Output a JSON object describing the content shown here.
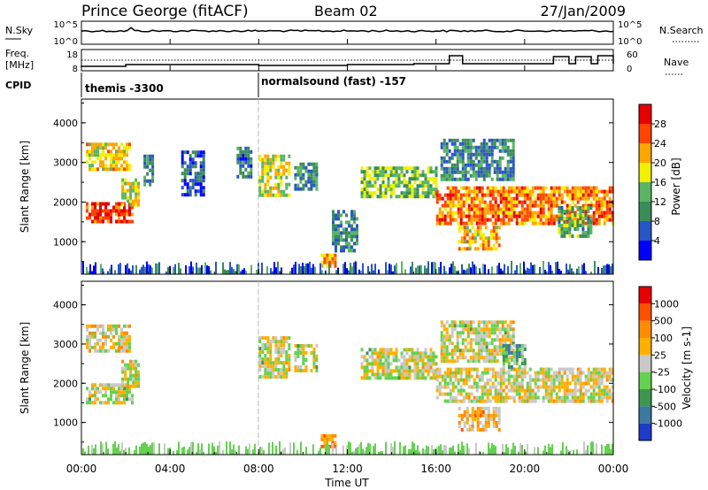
{
  "header": {
    "station": "Prince George (fitACF)",
    "beam": "Beam 02",
    "date": "27/Jan/2009"
  },
  "noise_panel": {
    "left_label": "N.Sky",
    "right_label": "N.Search",
    "left_ticks": [
      "10^5",
      "10^0"
    ],
    "right_ticks": [
      "10^5",
      "10^0"
    ]
  },
  "freq_panel": {
    "left_label_1": "Freq.",
    "left_label_2": "[MHz]",
    "right_label": "Nave",
    "left_ticks": [
      "18",
      "8"
    ],
    "right_ticks": [
      "60",
      "0"
    ]
  },
  "cpid": {
    "label": "CPID",
    "segments": [
      {
        "text": "themis -3300",
        "start_hour": 0
      },
      {
        "text": "normalsound (fast) -157",
        "start_hour": 8
      }
    ]
  },
  "x_axis": {
    "label": "Time UT",
    "ticks": [
      "00:00",
      "04:00",
      "08:00",
      "12:00",
      "16:00",
      "20:00",
      "00:00"
    ],
    "range_hours": [
      0,
      24
    ]
  },
  "chart_data": [
    {
      "type": "heatmap",
      "name": "Power",
      "ylabel": "Slant Range [km]",
      "ylim": [
        180,
        4600
      ],
      "yticks": [
        "1000",
        "2000",
        "3000",
        "4000"
      ],
      "colorbar_label": "Power [dB]",
      "colorbar_ticks": [
        "4",
        "8",
        "12",
        "16",
        "20",
        "24",
        "28"
      ],
      "colorscale": [
        "#0000ff",
        "#2855c8",
        "#3c8c5a",
        "#5ab464",
        "#f0f000",
        "#ffa500",
        "#ff4500",
        "#e60000"
      ],
      "regions": [
        {
          "t0": 0.2,
          "t1": 2.3,
          "r0": 1500,
          "r1": 2000,
          "level": 0.85
        },
        {
          "t0": 1.8,
          "t1": 2.6,
          "r0": 1900,
          "r1": 2600,
          "level": 0.55
        },
        {
          "t0": 0.2,
          "t1": 2.2,
          "r0": 2800,
          "r1": 3500,
          "level": 0.6
        },
        {
          "t0": 2.8,
          "t1": 3.2,
          "r0": 2400,
          "r1": 3200,
          "level": 0.3
        },
        {
          "t0": 4.5,
          "t1": 5.5,
          "r0": 2200,
          "r1": 3300,
          "level": 0.2
        },
        {
          "t0": 7.0,
          "t1": 7.6,
          "r0": 2600,
          "r1": 3400,
          "level": 0.25
        },
        {
          "t0": 8.0,
          "t1": 9.4,
          "r0": 2200,
          "r1": 3200,
          "level": 0.55
        },
        {
          "t0": 9.6,
          "t1": 10.6,
          "r0": 2300,
          "r1": 3000,
          "level": 0.3
        },
        {
          "t0": 10.8,
          "t1": 11.4,
          "r0": 350,
          "r1": 700,
          "level": 0.7
        },
        {
          "t0": 11.3,
          "t1": 12.4,
          "r0": 800,
          "r1": 1800,
          "level": 0.3
        },
        {
          "t0": 12.6,
          "t1": 16.0,
          "r0": 2100,
          "r1": 2900,
          "level": 0.45
        },
        {
          "t0": 16.0,
          "t1": 24.0,
          "r0": 1500,
          "r1": 2400,
          "level": 0.75
        },
        {
          "t0": 16.2,
          "t1": 19.5,
          "r0": 2600,
          "r1": 3600,
          "level": 0.3
        },
        {
          "t0": 17.0,
          "t1": 18.8,
          "r0": 800,
          "r1": 1400,
          "level": 0.65
        },
        {
          "t0": 21.5,
          "t1": 23.0,
          "r0": 1100,
          "r1": 1900,
          "level": 0.4
        }
      ]
    },
    {
      "type": "heatmap",
      "name": "Velocity",
      "ylabel": "Slant Range [km]",
      "ylim": [
        180,
        4600
      ],
      "yticks": [
        "1000",
        "2000",
        "3000",
        "4000"
      ],
      "colorbar_label": "Velocity [m s-1]",
      "colorbar_ticks": [
        "1000",
        "500",
        "100",
        "25",
        "-25",
        "-100",
        "-500",
        "-1000"
      ],
      "colorscale": [
        "#1e3cc8",
        "#3c78a0",
        "#3c9650",
        "#64d250",
        "#c8c8c8",
        "#ffb000",
        "#ff8c00",
        "#ff5000",
        "#e60000"
      ],
      "regions": [
        {
          "t0": 0.2,
          "t1": 2.3,
          "r0": 1500,
          "r1": 2000,
          "level": 0.5
        },
        {
          "t0": 1.8,
          "t1": 2.6,
          "r0": 1900,
          "r1": 2600,
          "level": 0.5
        },
        {
          "t0": 0.2,
          "t1": 2.2,
          "r0": 2800,
          "r1": 3500,
          "level": 0.55
        },
        {
          "t0": 8.0,
          "t1": 9.4,
          "r0": 2200,
          "r1": 3200,
          "level": 0.5
        },
        {
          "t0": 9.6,
          "t1": 10.6,
          "r0": 2300,
          "r1": 3000,
          "level": 0.5
        },
        {
          "t0": 10.8,
          "t1": 11.4,
          "r0": 350,
          "r1": 700,
          "level": 0.72
        },
        {
          "t0": 12.6,
          "t1": 16.0,
          "r0": 2100,
          "r1": 2900,
          "level": 0.5
        },
        {
          "t0": 16.0,
          "t1": 24.0,
          "r0": 1500,
          "r1": 2400,
          "level": 0.52
        },
        {
          "t0": 16.2,
          "t1": 19.5,
          "r0": 2600,
          "r1": 3600,
          "level": 0.5
        },
        {
          "t0": 17.0,
          "t1": 18.8,
          "r0": 800,
          "r1": 1400,
          "level": 0.62
        },
        {
          "t0": 19.0,
          "t1": 20.0,
          "r0": 2400,
          "r1": 3000,
          "level": 0.35
        }
      ]
    }
  ]
}
